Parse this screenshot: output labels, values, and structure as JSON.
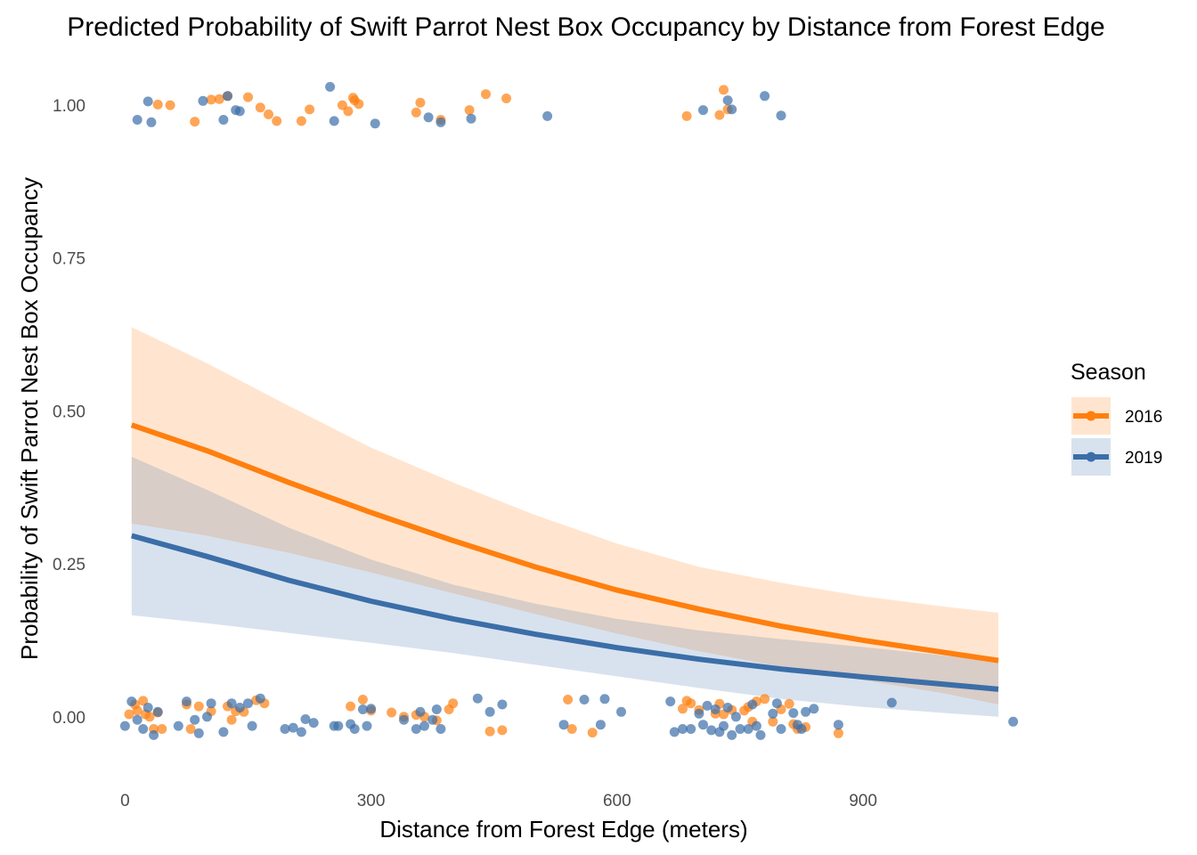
{
  "chart_data": {
    "type": "line",
    "title": "Predicted Probability of Swift Parrot Nest Box Occupancy by Distance from Forest Edge",
    "xlabel": "Distance from Forest Edge (meters)",
    "ylabel": "Probability of Swift Parrot Nest Box Occupancy",
    "xlim": [
      -20,
      1090
    ],
    "ylim": [
      -0.095,
      1.07
    ],
    "x_ticks": [
      0,
      300,
      600,
      900
    ],
    "x_tick_labels": [
      "0",
      "300",
      "600",
      "900"
    ],
    "y_ticks": [
      0,
      0.25,
      0.5,
      0.75,
      1
    ],
    "y_tick_labels": [
      "0.00",
      "0.25",
      "0.50",
      "0.75",
      "1.00"
    ],
    "grid": false,
    "legend": {
      "title": "Season",
      "position": "right"
    },
    "series": [
      {
        "name": "2016",
        "color": "#ff7f0e",
        "fit_x": [
          8,
          100,
          200,
          300,
          400,
          500,
          600,
          700,
          800,
          900,
          1000,
          1065
        ],
        "fit_y": [
          0.477,
          0.435,
          0.383,
          0.334,
          0.288,
          0.245,
          0.207,
          0.176,
          0.148,
          0.125,
          0.105,
          0.092
        ],
        "ci_lower": [
          0.316,
          0.296,
          0.268,
          0.236,
          0.202,
          0.168,
          0.136,
          0.107,
          0.082,
          0.06,
          0.038,
          0.02
        ],
        "ci_upper": [
          0.637,
          0.578,
          0.508,
          0.44,
          0.383,
          0.33,
          0.283,
          0.245,
          0.219,
          0.197,
          0.18,
          0.17
        ],
        "points_x": [
          40,
          55,
          85,
          105,
          115,
          125,
          150,
          165,
          175,
          185,
          215,
          225,
          265,
          272,
          278,
          280,
          285,
          355,
          360,
          385,
          420,
          440,
          465,
          685,
          725,
          730,
          735,
          5,
          12,
          15,
          22,
          25,
          30,
          35,
          40,
          45,
          75,
          80,
          90,
          105,
          125,
          130,
          135,
          145,
          160,
          170,
          275,
          290,
          300,
          325,
          340,
          355,
          365,
          380,
          395,
          400,
          445,
          460,
          540,
          545,
          570,
          680,
          685,
          690,
          700,
          720,
          725,
          730,
          740,
          755,
          760,
          765,
          770,
          780,
          790,
          800,
          810,
          815,
          820,
          830,
          870
        ],
        "points_y": [
          1.001,
          1.0,
          0.973,
          1.009,
          1.01,
          1.015,
          1.013,
          0.996,
          0.985,
          0.974,
          0.974,
          0.993,
          1.0,
          0.99,
          1.012,
          1.008,
          1.002,
          0.988,
          1.004,
          0.976,
          0.992,
          1.018,
          1.011,
          0.982,
          0.984,
          1.025,
          0.993,
          0.004,
          0.02,
          0.01,
          0.026,
          0.004,
          0.0,
          -0.02,
          0.007,
          -0.02,
          0.02,
          -0.02,
          0.017,
          0.009,
          0.017,
          -0.005,
          0.009,
          0.008,
          0.027,
          0.022,
          0.017,
          0.028,
          0.01,
          0.007,
          0.0,
          0.003,
          0.0,
          -0.006,
          0.012,
          0.022,
          -0.024,
          -0.022,
          0.028,
          -0.02,
          -0.026,
          0.013,
          0.026,
          0.022,
          0.011,
          0.005,
          0.021,
          0.004,
          0.011,
          0.01,
          0.016,
          -0.008,
          0.025,
          0.029,
          -0.008,
          0.012,
          0.021,
          -0.012,
          -0.02,
          -0.017,
          -0.027
        ]
      },
      {
        "name": "2019",
        "color": "#3b6ea8",
        "fit_x": [
          8,
          100,
          200,
          300,
          400,
          500,
          600,
          700,
          800,
          900,
          1000,
          1065
        ],
        "fit_y": [
          0.296,
          0.262,
          0.223,
          0.189,
          0.16,
          0.135,
          0.113,
          0.094,
          0.078,
          0.065,
          0.053,
          0.045
        ],
        "ci_lower": [
          0.166,
          0.153,
          0.137,
          0.121,
          0.104,
          0.085,
          0.066,
          0.047,
          0.029,
          0.016,
          0.006,
          0.0
        ],
        "ci_upper": [
          0.425,
          0.371,
          0.309,
          0.257,
          0.216,
          0.185,
          0.16,
          0.141,
          0.127,
          0.114,
          0.1,
          0.091
        ],
        "points_x": [
          15,
          28,
          32,
          95,
          120,
          125,
          135,
          140,
          250,
          255,
          305,
          370,
          385,
          422,
          515,
          705,
          735,
          740,
          780,
          800,
          0,
          8,
          15,
          22,
          28,
          35,
          40,
          65,
          75,
          85,
          90,
          100,
          105,
          120,
          130,
          140,
          150,
          155,
          165,
          195,
          205,
          215,
          220,
          230,
          255,
          260,
          275,
          280,
          290,
          295,
          300,
          340,
          355,
          360,
          365,
          375,
          380,
          385,
          430,
          445,
          460,
          535,
          560,
          580,
          585,
          605,
          665,
          670,
          680,
          690,
          700,
          705,
          710,
          715,
          720,
          725,
          730,
          735,
          740,
          745,
          750,
          760,
          765,
          770,
          775,
          790,
          795,
          800,
          815,
          820,
          825,
          830,
          840,
          870,
          935,
          1083
        ],
        "points_y": [
          0.976,
          1.006,
          0.972,
          1.007,
          0.976,
          1.015,
          0.992,
          0.99,
          1.03,
          0.974,
          0.97,
          0.98,
          0.972,
          0.978,
          0.982,
          0.992,
          1.008,
          0.993,
          1.015,
          0.983,
          -0.015,
          0.025,
          -0.005,
          -0.02,
          0.015,
          -0.03,
          0.008,
          -0.015,
          0.025,
          -0.005,
          -0.027,
          0.0,
          0.022,
          -0.025,
          0.022,
          0.015,
          0.022,
          -0.015,
          0.03,
          -0.02,
          -0.018,
          -0.025,
          -0.004,
          -0.01,
          -0.015,
          -0.015,
          -0.012,
          -0.02,
          0.012,
          -0.015,
          0.013,
          -0.005,
          -0.02,
          0.008,
          -0.015,
          -0.005,
          0.012,
          -0.02,
          0.03,
          0.008,
          0.02,
          -0.013,
          0.028,
          -0.013,
          0.029,
          0.008,
          0.025,
          -0.025,
          -0.02,
          -0.02,
          0.005,
          -0.013,
          0.018,
          -0.022,
          0.012,
          -0.025,
          -0.015,
          0.015,
          -0.03,
          0.0,
          -0.02,
          -0.02,
          0.02,
          -0.015,
          -0.03,
          0.005,
          0.022,
          -0.02,
          0.006,
          -0.013,
          -0.02,
          0.008,
          0.013,
          -0.013,
          0.023,
          -0.008
        ]
      }
    ]
  }
}
